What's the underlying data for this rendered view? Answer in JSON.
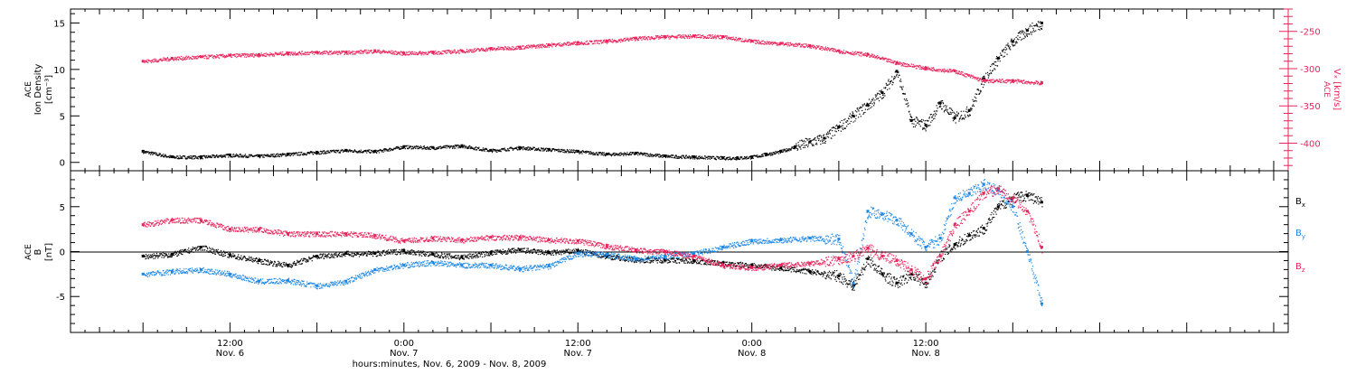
{
  "colors": {
    "ink": "#000000",
    "magenta": "#e8245c",
    "blue": "#1e88e5"
  },
  "chart_data": [
    {
      "type": "scatter",
      "panel": "top",
      "left_ylabel": [
        "ACE",
        "Ion Density",
        "[cm⁻³]"
      ],
      "right_ylabel": [
        "ACE",
        "Vₓ [km/s]"
      ],
      "ylim_left": [
        -0.9,
        16.5
      ],
      "ylim_right": [
        -437,
        -220
      ],
      "left_ticks": [
        0,
        5,
        10,
        15
      ],
      "right_ticks": [
        -400,
        -350,
        -300,
        -250
      ],
      "series": [
        {
          "axis": "left",
          "color": "#000000",
          "x": [
            0,
            2,
            4,
            6,
            8,
            10,
            12,
            14,
            16,
            18,
            20,
            22,
            24,
            26,
            28,
            30,
            32,
            34,
            36,
            38,
            40,
            41,
            42,
            43,
            44,
            45,
            46,
            47,
            48,
            49,
            50,
            51,
            52,
            53,
            54,
            55,
            56,
            57,
            58,
            59,
            60,
            61,
            62
          ],
          "y": [
            1.2,
            0.6,
            0.6,
            0.8,
            0.7,
            0.9,
            1.1,
            1.3,
            1.2,
            1.7,
            1.6,
            1.8,
            1.3,
            1.6,
            1.4,
            1.2,
            0.9,
            1.0,
            0.7,
            0.6,
            0.5,
            0.5,
            0.6,
            0.9,
            1.2,
            1.7,
            2.2,
            2.6,
            3.8,
            5.0,
            6.2,
            7.5,
            9.8,
            4.5,
            4.0,
            6.4,
            4.8,
            5.6,
            9.0,
            11.2,
            13.0,
            14.2,
            15.0
          ]
        },
        {
          "axis": "right",
          "color": "#e8245c",
          "x": [
            0,
            2,
            4,
            6,
            8,
            10,
            12,
            14,
            16,
            18,
            20,
            22,
            24,
            26,
            28,
            30,
            32,
            34,
            36,
            38,
            40,
            42,
            44,
            46,
            48,
            50,
            52,
            54,
            56,
            58,
            60,
            62
          ],
          "y": [
            -290,
            -286,
            -284,
            -282,
            -281,
            -279,
            -278,
            -278,
            -276,
            -279,
            -278,
            -276,
            -273,
            -271,
            -268,
            -265,
            -263,
            -259,
            -257,
            -256,
            -257,
            -263,
            -266,
            -269,
            -276,
            -281,
            -292,
            -299,
            -303,
            -316,
            -316,
            -319
          ]
        }
      ]
    },
    {
      "type": "scatter",
      "panel": "bottom",
      "ylabel": [
        "ACE",
        "B",
        "[nT]"
      ],
      "ylim": [
        -9,
        9
      ],
      "yticks": [
        -5,
        0,
        5
      ],
      "zero_line": true,
      "legend": [
        {
          "label": "B",
          "sub": "x",
          "color": "#000000"
        },
        {
          "label": "B",
          "sub": "y",
          "color": "#1e88e5"
        },
        {
          "label": "B",
          "sub": "z",
          "color": "#e8245c"
        }
      ],
      "series": [
        {
          "name": "Bx",
          "color": "#000000",
          "x": [
            0,
            2,
            4,
            6,
            8,
            10,
            12,
            14,
            16,
            18,
            20,
            22,
            24,
            26,
            28,
            30,
            32,
            34,
            36,
            38,
            40,
            42,
            44,
            46,
            48,
            49,
            50,
            51,
            52,
            53,
            54,
            55,
            56,
            57,
            58,
            59,
            60,
            61,
            62
          ],
          "y": [
            -0.5,
            -0.3,
            0.5,
            -0.4,
            -1.0,
            -1.5,
            -0.5,
            -0.2,
            -0.2,
            0.1,
            -0.3,
            -0.6,
            -0.1,
            0.2,
            -0.1,
            0.1,
            -0.5,
            -0.9,
            -0.9,
            -1.0,
            -1.3,
            -1.5,
            -1.8,
            -2.2,
            -2.7,
            -3.8,
            -0.8,
            -2.5,
            -3.5,
            -2.5,
            -3.5,
            -0.5,
            0.8,
            1.8,
            2.6,
            5.0,
            6.0,
            6.3,
            5.5
          ]
        },
        {
          "name": "By",
          "color": "#1e88e5",
          "x": [
            0,
            2,
            4,
            6,
            8,
            10,
            12,
            14,
            16,
            18,
            20,
            22,
            24,
            26,
            28,
            30,
            32,
            34,
            36,
            38,
            40,
            42,
            44,
            46,
            48,
            49,
            50,
            51,
            52,
            53,
            54,
            55,
            56,
            57,
            58,
            59,
            60,
            61,
            62
          ],
          "y": [
            -2.5,
            -2.2,
            -2.0,
            -2.5,
            -3.3,
            -3.2,
            -3.8,
            -3.3,
            -2.0,
            -1.5,
            -1.2,
            -1.5,
            -1.5,
            -1.9,
            -1.6,
            -0.2,
            -0.3,
            -0.8,
            -0.5,
            -0.2,
            0.5,
            1.2,
            1.3,
            1.5,
            1.4,
            -3.5,
            4.5,
            4.2,
            3.5,
            2.0,
            0.5,
            1.5,
            6.0,
            6.5,
            7.5,
            6.8,
            5.0,
            0.0,
            -5.8
          ]
        },
        {
          "name": "Bz",
          "color": "#e8245c",
          "x": [
            0,
            2,
            4,
            6,
            8,
            10,
            12,
            14,
            16,
            18,
            20,
            22,
            24,
            26,
            28,
            30,
            32,
            34,
            36,
            38,
            40,
            42,
            44,
            46,
            48,
            49,
            50,
            51,
            52,
            53,
            54,
            55,
            56,
            57,
            58,
            59,
            60,
            61,
            62
          ],
          "y": [
            3.0,
            3.5,
            3.5,
            2.5,
            2.5,
            2.0,
            2.0,
            2.0,
            1.8,
            1.2,
            1.5,
            1.3,
            1.6,
            1.6,
            1.3,
            1.2,
            0.6,
            0.2,
            0.0,
            -0.5,
            -1.5,
            -1.8,
            -1.5,
            -1.3,
            -0.8,
            -0.5,
            0.4,
            -0.5,
            -1.0,
            -2.0,
            -3.0,
            -0.5,
            3.0,
            4.5,
            6.5,
            7.0,
            6.0,
            4.5,
            0.5
          ]
        }
      ]
    }
  ],
  "x_axis": {
    "xlim": [
      -5,
      79
    ],
    "tick_labels": [
      {
        "h": 6,
        "time": "12:00",
        "day": "Nov. 6"
      },
      {
        "h": 18,
        "time": "0:00",
        "day": "Nov. 7"
      },
      {
        "h": 30,
        "time": "12:00",
        "day": "Nov. 7"
      },
      {
        "h": 42,
        "time": "0:00",
        "day": "Nov. 8"
      },
      {
        "h": 54,
        "time": "12:00",
        "day": "Nov. 8"
      }
    ],
    "label": "hours:minutes, Nov. 6, 2009 - Nov. 8, 2009"
  }
}
